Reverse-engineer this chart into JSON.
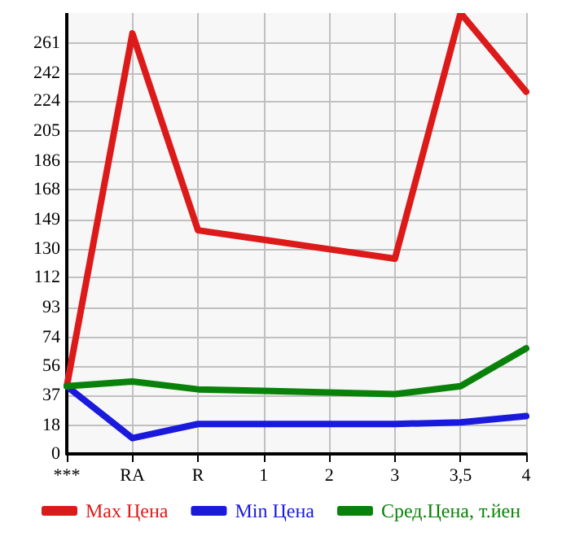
{
  "chart_data": {
    "type": "line",
    "categories": [
      "***",
      "RA",
      "R",
      "1",
      "2",
      "3",
      "3,5",
      "4"
    ],
    "series": [
      {
        "name": "Max Цена",
        "color": "#dd1a1a",
        "values": [
          43,
          267,
          142,
          136,
          130,
          124,
          280,
          230
        ]
      },
      {
        "name": "Min Цена",
        "color": "#1a1add",
        "values": [
          43,
          10,
          19,
          19,
          19,
          19,
          20,
          24
        ]
      },
      {
        "name": "Сред.Цена, т.йен",
        "color": "#0a820a",
        "values": [
          43,
          46,
          41,
          40,
          39,
          38,
          43,
          67
        ]
      }
    ],
    "ylim": [
      0,
      280
    ],
    "yticks": [
      0,
      18,
      37,
      56,
      74,
      93,
      112,
      130,
      149,
      168,
      186,
      205,
      224,
      242,
      261
    ],
    "grid": true,
    "legend": "bottom",
    "marker": "none",
    "line_style": "solid"
  }
}
